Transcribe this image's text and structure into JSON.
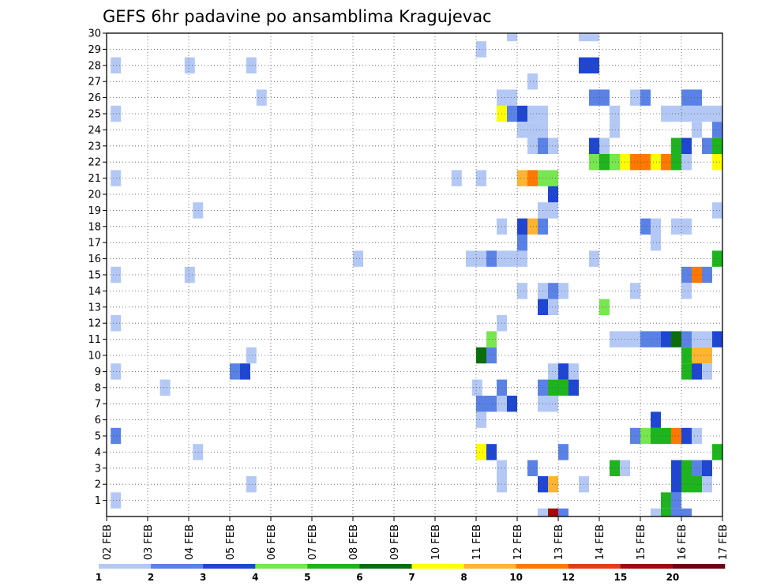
{
  "chart_data": {
    "type": "heatmap",
    "title": "GEFS 6hr padavine po ansamblima Kragujevac",
    "xlabel": "",
    "ylabel": "",
    "x_tick_labels": [
      "02 FEB",
      "03 FEB",
      "04 FEB",
      "05 FEB",
      "06 FEB",
      "07 FEB",
      "08 FEB",
      "09 FEB",
      "10 FEB",
      "11 FEB",
      "12 FEB",
      "13 FEB",
      "14 FEB",
      "15 FEB",
      "16 FEB",
      "17 FEB"
    ],
    "xlim_days": [
      0,
      15
    ],
    "ylim": [
      0,
      30
    ],
    "y_ticks": [
      1,
      2,
      3,
      4,
      5,
      6,
      7,
      8,
      9,
      10,
      11,
      12,
      13,
      14,
      15,
      16,
      17,
      18,
      19,
      20,
      21,
      22,
      23,
      24,
      25,
      26,
      27,
      28,
      29,
      30
    ],
    "grid": "dotted",
    "colorbar": {
      "labels": [
        "1",
        "2",
        "3",
        "4",
        "5",
        "6",
        "7",
        "8",
        "10",
        "12",
        "15",
        "20"
      ],
      "colors": [
        "#b4c8f5",
        "#5a82e6",
        "#1e46d2",
        "#78e650",
        "#1eb41e",
        "#0a6e0a",
        "#ffff00",
        "#ffb432",
        "#ff7800",
        "#e63c1e",
        "#a00a0a",
        "#6e0014"
      ]
    },
    "cells": [
      {
        "day": 0.1,
        "m": 1,
        "v": 1
      },
      {
        "day": 0.1,
        "m": 5,
        "v": 2
      },
      {
        "day": 0.1,
        "m": 9,
        "v": 1
      },
      {
        "day": 0.1,
        "m": 12,
        "v": 1
      },
      {
        "day": 0.1,
        "m": 15,
        "v": 1
      },
      {
        "day": 0.1,
        "m": 21,
        "v": 1
      },
      {
        "day": 0.1,
        "m": 25,
        "v": 1
      },
      {
        "day": 0.1,
        "m": 28,
        "v": 1
      },
      {
        "day": 1.3,
        "m": 8,
        "v": 1
      },
      {
        "day": 1.9,
        "m": 15,
        "v": 1
      },
      {
        "day": 1.9,
        "m": 28,
        "v": 1
      },
      {
        "day": 2.1,
        "m": 4,
        "v": 1
      },
      {
        "day": 2.1,
        "m": 19,
        "v": 1
      },
      {
        "day": 3.0,
        "m": 9,
        "v": 2
      },
      {
        "day": 3.25,
        "m": 9,
        "v": 3
      },
      {
        "day": 3.4,
        "m": 2,
        "v": 1
      },
      {
        "day": 3.4,
        "m": 10,
        "v": 1
      },
      {
        "day": 3.4,
        "m": 28,
        "v": 1
      },
      {
        "day": 3.65,
        "m": 26,
        "v": 1
      },
      {
        "day": 6.0,
        "m": 16,
        "v": 1
      },
      {
        "day": 8.9,
        "m": 8,
        "v": 1
      },
      {
        "day": 8.4,
        "m": 21,
        "v": 1
      },
      {
        "day": 8.75,
        "m": 16,
        "v": 1
      },
      {
        "day": 9.0,
        "m": 16,
        "v": 1
      },
      {
        "day": 9.25,
        "m": 16,
        "v": 2
      },
      {
        "day": 9.5,
        "m": 16,
        "v": 1
      },
      {
        "day": 9.75,
        "m": 16,
        "v": 1
      },
      {
        "day": 9.0,
        "m": 4,
        "v": 7
      },
      {
        "day": 9.25,
        "m": 4,
        "v": 3
      },
      {
        "day": 9.0,
        "m": 6,
        "v": 1
      },
      {
        "day": 9.0,
        "m": 7,
        "v": 2
      },
      {
        "day": 9.25,
        "m": 7,
        "v": 2
      },
      {
        "day": 9.5,
        "m": 7,
        "v": 1
      },
      {
        "day": 9.75,
        "m": 7,
        "v": 3
      },
      {
        "day": 9.5,
        "m": 8,
        "v": 2
      },
      {
        "day": 9.0,
        "m": 10,
        "v": 6
      },
      {
        "day": 9.25,
        "m": 10,
        "v": 2
      },
      {
        "day": 9.25,
        "m": 11,
        "v": 4
      },
      {
        "day": 9.5,
        "m": 12,
        "v": 1
      },
      {
        "day": 9.0,
        "m": 21,
        "v": 1
      },
      {
        "day": 9.0,
        "m": 29,
        "v": 1
      },
      {
        "day": 9.5,
        "m": 2,
        "v": 1
      },
      {
        "day": 9.5,
        "m": 3,
        "v": 1
      },
      {
        "day": 9.5,
        "m": 18,
        "v": 1
      },
      {
        "day": 9.5,
        "m": 25,
        "v": 7
      },
      {
        "day": 9.5,
        "m": 26,
        "v": 1
      },
      {
        "day": 9.75,
        "m": 26,
        "v": 1
      },
      {
        "day": 9.75,
        "m": 25,
        "v": 2
      },
      {
        "day": 10.0,
        "m": 25,
        "v": 3
      },
      {
        "day": 10.25,
        "m": 25,
        "v": 1
      },
      {
        "day": 10.5,
        "m": 25,
        "v": 1
      },
      {
        "day": 9.75,
        "m": 30,
        "v": 1
      },
      {
        "day": 10.0,
        "m": 14,
        "v": 1
      },
      {
        "day": 10.0,
        "m": 16,
        "v": 1
      },
      {
        "day": 10.0,
        "m": 17,
        "v": 2
      },
      {
        "day": 10.0,
        "m": 18,
        "v": 3
      },
      {
        "day": 10.25,
        "m": 18,
        "v": 8
      },
      {
        "day": 10.5,
        "m": 18,
        "v": 2
      },
      {
        "day": 10.0,
        "m": 21,
        "v": 8
      },
      {
        "day": 10.25,
        "m": 21,
        "v": 9
      },
      {
        "day": 10.5,
        "m": 21,
        "v": 4
      },
      {
        "day": 10.75,
        "m": 21,
        "v": 4
      },
      {
        "day": 10.0,
        "m": 24,
        "v": 1
      },
      {
        "day": 10.25,
        "m": 24,
        "v": 1
      },
      {
        "day": 10.5,
        "m": 24,
        "v": 1
      },
      {
        "day": 10.25,
        "m": 3,
        "v": 2
      },
      {
        "day": 10.25,
        "m": 27,
        "v": 1
      },
      {
        "day": 10.25,
        "m": 23,
        "v": 1
      },
      {
        "day": 10.5,
        "m": 23,
        "v": 2
      },
      {
        "day": 10.5,
        "m": 2,
        "v": 3
      },
      {
        "day": 10.75,
        "m": 2,
        "v": 8
      },
      {
        "day": 10.5,
        "m": 7,
        "v": 1
      },
      {
        "day": 10.75,
        "m": 7,
        "v": 1
      },
      {
        "day": 10.5,
        "m": 8,
        "v": 2
      },
      {
        "day": 10.75,
        "m": 8,
        "v": 5
      },
      {
        "day": 11.0,
        "m": 8,
        "v": 5
      },
      {
        "day": 11.25,
        "m": 8,
        "v": 3
      },
      {
        "day": 10.5,
        "m": 13,
        "v": 3
      },
      {
        "day": 10.75,
        "m": 13,
        "v": 1
      },
      {
        "day": 10.5,
        "m": 14,
        "v": 1
      },
      {
        "day": 10.75,
        "m": 14,
        "v": 2
      },
      {
        "day": 11.0,
        "m": 14,
        "v": 1
      },
      {
        "day": 10.5,
        "m": 19,
        "v": 1
      },
      {
        "day": 10.75,
        "m": 19,
        "v": 1
      },
      {
        "day": 10.75,
        "m": 20,
        "v": 3
      },
      {
        "day": 10.75,
        "m": 9,
        "v": 1
      },
      {
        "day": 11.0,
        "m": 9,
        "v": 3
      },
      {
        "day": 11.25,
        "m": 9,
        "v": 1
      },
      {
        "day": 10.75,
        "m": 0,
        "v": 11
      },
      {
        "day": 10.5,
        "m": 0,
        "v": 1
      },
      {
        "day": 11.0,
        "m": 0,
        "v": 2
      },
      {
        "day": 11.0,
        "m": 4,
        "v": 2
      },
      {
        "day": 10.75,
        "m": 23,
        "v": 1
      },
      {
        "day": 11.5,
        "m": 2,
        "v": 1
      },
      {
        "day": 11.5,
        "m": 30,
        "v": 1
      },
      {
        "day": 11.75,
        "m": 30,
        "v": 1
      },
      {
        "day": 11.5,
        "m": 28,
        "v": 3
      },
      {
        "day": 11.75,
        "m": 28,
        "v": 3
      },
      {
        "day": 11.75,
        "m": 26,
        "v": 2
      },
      {
        "day": 12.0,
        "m": 26,
        "v": 2
      },
      {
        "day": 11.75,
        "m": 23,
        "v": 3
      },
      {
        "day": 12.0,
        "m": 23,
        "v": 1
      },
      {
        "day": 11.75,
        "m": 22,
        "v": 4
      },
      {
        "day": 12.0,
        "m": 22,
        "v": 5
      },
      {
        "day": 12.25,
        "m": 22,
        "v": 4
      },
      {
        "day": 12.5,
        "m": 22,
        "v": 7
      },
      {
        "day": 12.75,
        "m": 22,
        "v": 9
      },
      {
        "day": 13.0,
        "m": 22,
        "v": 9
      },
      {
        "day": 13.25,
        "m": 22,
        "v": 7
      },
      {
        "day": 13.5,
        "m": 22,
        "v": 9
      },
      {
        "day": 13.75,
        "m": 22,
        "v": 5
      },
      {
        "day": 14.0,
        "m": 22,
        "v": 1
      },
      {
        "day": 11.75,
        "m": 16,
        "v": 1
      },
      {
        "day": 12.0,
        "m": 13,
        "v": 4
      },
      {
        "day": 12.25,
        "m": 3,
        "v": 5
      },
      {
        "day": 12.5,
        "m": 3,
        "v": 1
      },
      {
        "day": 12.25,
        "m": 11,
        "v": 1
      },
      {
        "day": 12.5,
        "m": 11,
        "v": 1
      },
      {
        "day": 12.75,
        "m": 11,
        "v": 1
      },
      {
        "day": 13.0,
        "m": 11,
        "v": 2
      },
      {
        "day": 13.25,
        "m": 11,
        "v": 2
      },
      {
        "day": 13.5,
        "m": 11,
        "v": 3
      },
      {
        "day": 13.75,
        "m": 11,
        "v": 6
      },
      {
        "day": 14.0,
        "m": 11,
        "v": 2
      },
      {
        "day": 14.25,
        "m": 11,
        "v": 1
      },
      {
        "day": 14.5,
        "m": 11,
        "v": 1
      },
      {
        "day": 14.75,
        "m": 11,
        "v": 3
      },
      {
        "day": 12.25,
        "m": 24,
        "v": 1
      },
      {
        "day": 12.25,
        "m": 25,
        "v": 1
      },
      {
        "day": 12.75,
        "m": 14,
        "v": 1
      },
      {
        "day": 12.75,
        "m": 5,
        "v": 2
      },
      {
        "day": 13.0,
        "m": 5,
        "v": 4
      },
      {
        "day": 13.25,
        "m": 5,
        "v": 5
      },
      {
        "day": 13.5,
        "m": 5,
        "v": 5
      },
      {
        "day": 13.75,
        "m": 5,
        "v": 9
      },
      {
        "day": 14.0,
        "m": 5,
        "v": 3
      },
      {
        "day": 14.25,
        "m": 5,
        "v": 1
      },
      {
        "day": 12.75,
        "m": 26,
        "v": 1
      },
      {
        "day": 13.0,
        "m": 26,
        "v": 2
      },
      {
        "day": 13.0,
        "m": 18,
        "v": 2
      },
      {
        "day": 13.25,
        "m": 18,
        "v": 1
      },
      {
        "day": 13.25,
        "m": 6,
        "v": 3
      },
      {
        "day": 13.25,
        "m": 17,
        "v": 1
      },
      {
        "day": 13.5,
        "m": 1,
        "v": 5
      },
      {
        "day": 13.75,
        "m": 1,
        "v": 2
      },
      {
        "day": 13.75,
        "m": 2,
        "v": 3
      },
      {
        "day": 14.0,
        "m": 2,
        "v": 5
      },
      {
        "day": 14.25,
        "m": 2,
        "v": 5
      },
      {
        "day": 13.25,
        "m": 0,
        "v": 1
      },
      {
        "day": 13.5,
        "m": 0,
        "v": 5
      },
      {
        "day": 13.75,
        "m": 0,
        "v": 2
      },
      {
        "day": 14.0,
        "m": 0,
        "v": 2
      },
      {
        "day": 13.75,
        "m": 3,
        "v": 3
      },
      {
        "day": 14.0,
        "m": 3,
        "v": 5
      },
      {
        "day": 14.25,
        "m": 3,
        "v": 2
      },
      {
        "day": 14.5,
        "m": 3,
        "v": 3
      },
      {
        "day": 13.75,
        "m": 23,
        "v": 5
      },
      {
        "day": 14.0,
        "m": 23,
        "v": 3
      },
      {
        "day": 13.75,
        "m": 18,
        "v": 1
      },
      {
        "day": 14.0,
        "m": 18,
        "v": 1
      },
      {
        "day": 13.5,
        "m": 25,
        "v": 1
      },
      {
        "day": 13.75,
        "m": 25,
        "v": 1
      },
      {
        "day": 14.0,
        "m": 25,
        "v": 1
      },
      {
        "day": 14.25,
        "m": 25,
        "v": 1
      },
      {
        "day": 14.5,
        "m": 25,
        "v": 1
      },
      {
        "day": 14.75,
        "m": 25,
        "v": 1
      },
      {
        "day": 14.0,
        "m": 26,
        "v": 2
      },
      {
        "day": 14.25,
        "m": 26,
        "v": 2
      },
      {
        "day": 14.25,
        "m": 24,
        "v": 1
      },
      {
        "day": 14.75,
        "m": 24,
        "v": 2
      },
      {
        "day": 14.0,
        "m": 15,
        "v": 2
      },
      {
        "day": 14.25,
        "m": 15,
        "v": 9
      },
      {
        "day": 14.5,
        "m": 15,
        "v": 2
      },
      {
        "day": 14.0,
        "m": 14,
        "v": 1
      },
      {
        "day": 14.0,
        "m": 10,
        "v": 5
      },
      {
        "day": 14.25,
        "m": 10,
        "v": 8
      },
      {
        "day": 14.5,
        "m": 10,
        "v": 8
      },
      {
        "day": 14.0,
        "m": 9,
        "v": 5
      },
      {
        "day": 14.25,
        "m": 9,
        "v": 3
      },
      {
        "day": 14.5,
        "m": 9,
        "v": 1
      },
      {
        "day": 14.5,
        "m": 2,
        "v": 1
      },
      {
        "day": 14.5,
        "m": 23,
        "v": 2
      },
      {
        "day": 14.75,
        "m": 23,
        "v": 5
      },
      {
        "day": 14.75,
        "m": 22,
        "v": 7
      },
      {
        "day": 14.75,
        "m": 16,
        "v": 5
      },
      {
        "day": 14.75,
        "m": 4,
        "v": 5
      },
      {
        "day": 14.75,
        "m": 19,
        "v": 1
      }
    ]
  }
}
